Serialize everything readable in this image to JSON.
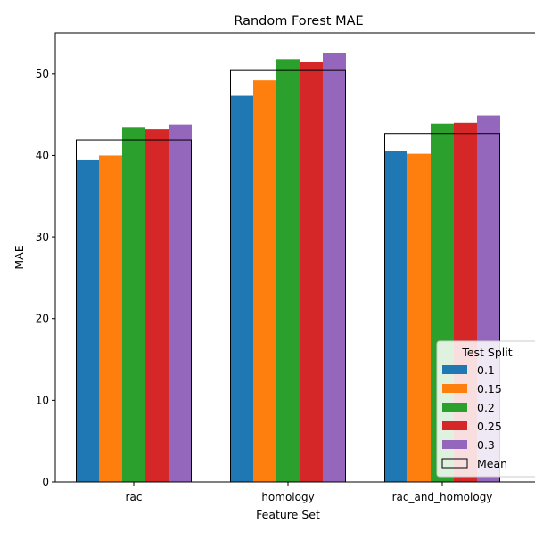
{
  "chart_data": {
    "type": "bar",
    "title": "Random Forest MAE",
    "xlabel": "Feature Set",
    "ylabel": "MAE",
    "categories": [
      "rac",
      "homology",
      "rac_and_homology"
    ],
    "ylim": [
      0,
      55
    ],
    "yticks": [
      0,
      10,
      20,
      30,
      40,
      50
    ],
    "grid": false,
    "legend": {
      "title": "Test Split",
      "placement": "bottom-right",
      "mean_label": "Mean"
    },
    "series": [
      {
        "name": "0.1",
        "color": "#1f77b4",
        "values": [
          39.4,
          47.3,
          40.5
        ]
      },
      {
        "name": "0.15",
        "color": "#ff7f0e",
        "values": [
          40.0,
          49.2,
          40.2
        ]
      },
      {
        "name": "0.2",
        "color": "#2ca02c",
        "values": [
          43.4,
          51.8,
          43.9
        ]
      },
      {
        "name": "0.25",
        "color": "#d62728",
        "values": [
          43.2,
          51.4,
          44.0
        ]
      },
      {
        "name": "0.3",
        "color": "#9467bd",
        "values": [
          43.8,
          52.6,
          44.9
        ]
      }
    ],
    "mean": {
      "name": "Mean",
      "values": [
        41.9,
        50.4,
        42.7
      ]
    }
  }
}
